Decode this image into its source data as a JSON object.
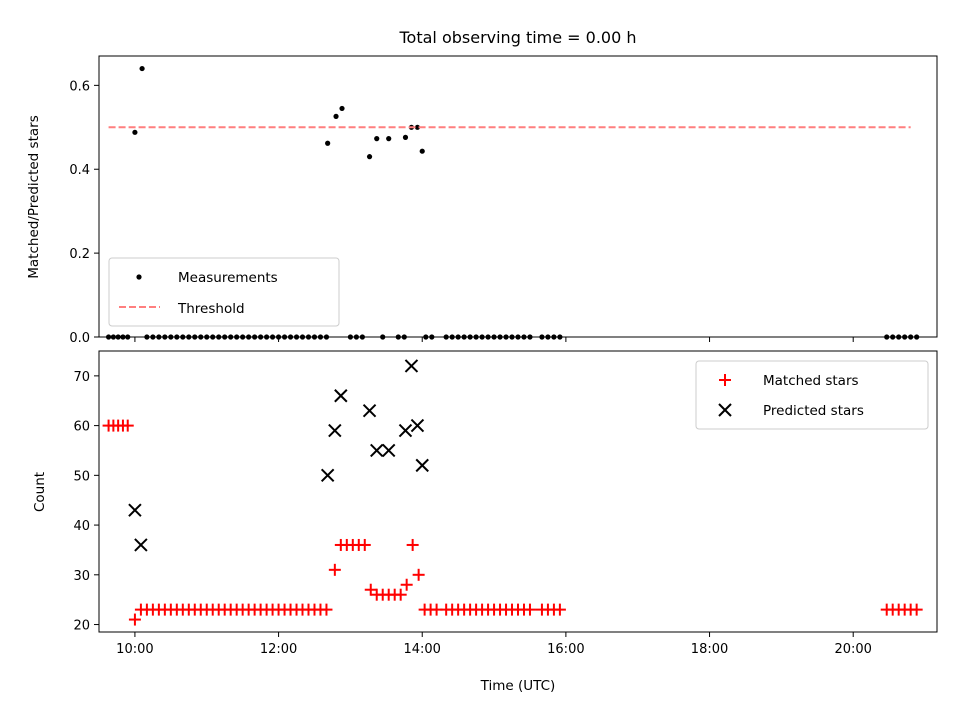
{
  "figure": {
    "title": "Total observing time = 0.00 h",
    "xlabel": "Time (UTC)"
  },
  "chart_data": [
    {
      "type": "scatter",
      "ylabel": "Matched/Predicted stars",
      "xlim": [
        "09:30",
        "21:10"
      ],
      "ylim": [
        0,
        0.67
      ],
      "yticks": [
        "0.0",
        "0.2",
        "0.4",
        "0.6"
      ],
      "xticks": [
        "10:00",
        "12:00",
        "14:00",
        "16:00",
        "18:00",
        "20:00"
      ],
      "legend_position": "lower-left",
      "series": [
        {
          "name": "Measurements",
          "kind": "scatter",
          "color": "#000000",
          "points": [
            [
              "09:38",
              0
            ],
            [
              "09:42",
              0
            ],
            [
              "09:46",
              0
            ],
            [
              "09:50",
              0
            ],
            [
              "09:54",
              0
            ],
            [
              "10:00",
              0.488
            ],
            [
              "10:06",
              0.64
            ],
            [
              "10:10",
              0
            ],
            [
              "10:15",
              0
            ],
            [
              "10:20",
              0
            ],
            [
              "10:25",
              0
            ],
            [
              "10:30",
              0
            ],
            [
              "10:35",
              0
            ],
            [
              "10:40",
              0
            ],
            [
              "10:45",
              0
            ],
            [
              "10:50",
              0
            ],
            [
              "10:55",
              0
            ],
            [
              "11:00",
              0
            ],
            [
              "11:05",
              0
            ],
            [
              "11:10",
              0
            ],
            [
              "11:15",
              0
            ],
            [
              "11:20",
              0
            ],
            [
              "11:25",
              0
            ],
            [
              "11:30",
              0
            ],
            [
              "11:35",
              0
            ],
            [
              "11:40",
              0
            ],
            [
              "11:45",
              0
            ],
            [
              "11:50",
              0
            ],
            [
              "11:55",
              0
            ],
            [
              "12:00",
              0
            ],
            [
              "12:05",
              0
            ],
            [
              "12:10",
              0
            ],
            [
              "12:15",
              0
            ],
            [
              "12:20",
              0
            ],
            [
              "12:25",
              0
            ],
            [
              "12:30",
              0
            ],
            [
              "12:35",
              0
            ],
            [
              "12:40",
              0
            ],
            [
              "12:41",
              0.462
            ],
            [
              "12:48",
              0.526
            ],
            [
              "12:53",
              0.545
            ],
            [
              "13:00",
              0
            ],
            [
              "13:05",
              0
            ],
            [
              "13:10",
              0
            ],
            [
              "13:16",
              0.43
            ],
            [
              "13:22",
              0.473
            ],
            [
              "13:32",
              0.473
            ],
            [
              "13:27",
              0
            ],
            [
              "13:40",
              0
            ],
            [
              "13:45",
              0
            ],
            [
              "13:46",
              0.476
            ],
            [
              "13:51",
              0.5
            ],
            [
              "13:56",
              0.5
            ],
            [
              "14:00",
              0.443
            ],
            [
              "14:03",
              0
            ],
            [
              "14:08",
              0
            ],
            [
              "14:20",
              0
            ],
            [
              "14:25",
              0
            ],
            [
              "14:30",
              0
            ],
            [
              "14:35",
              0
            ],
            [
              "14:40",
              0
            ],
            [
              "14:45",
              0
            ],
            [
              "14:50",
              0
            ],
            [
              "14:55",
              0
            ],
            [
              "15:00",
              0
            ],
            [
              "15:05",
              0
            ],
            [
              "15:10",
              0
            ],
            [
              "15:15",
              0
            ],
            [
              "15:20",
              0
            ],
            [
              "15:25",
              0
            ],
            [
              "15:30",
              0
            ],
            [
              "15:40",
              0
            ],
            [
              "15:45",
              0
            ],
            [
              "15:50",
              0
            ],
            [
              "15:55",
              0
            ],
            [
              "20:28",
              0
            ],
            [
              "20:33",
              0
            ],
            [
              "20:38",
              0
            ],
            [
              "20:43",
              0
            ],
            [
              "20:48",
              0
            ],
            [
              "20:53",
              0
            ]
          ]
        },
        {
          "name": "Threshold",
          "kind": "dashed-line",
          "color": "#ff7f7f",
          "points": [
            [
              "09:38",
              0.5
            ],
            [
              "20:48",
              0.5
            ]
          ]
        }
      ]
    },
    {
      "type": "scatter",
      "ylabel": "Count",
      "xlim": [
        "09:30",
        "21:10"
      ],
      "ylim": [
        18.5,
        75
      ],
      "yticks": [
        "20",
        "30",
        "40",
        "50",
        "60",
        "70"
      ],
      "xticks": [
        "10:00",
        "12:00",
        "14:00",
        "16:00",
        "18:00",
        "20:00"
      ],
      "legend_position": "upper-right",
      "series": [
        {
          "name": "Matched stars",
          "kind": "plus",
          "color": "#ff0000",
          "points": [
            [
              "09:38",
              60
            ],
            [
              "09:42",
              60
            ],
            [
              "09:46",
              60
            ],
            [
              "09:50",
              60
            ],
            [
              "09:54",
              60
            ],
            [
              "10:00",
              21
            ],
            [
              "10:05",
              23
            ],
            [
              "10:10",
              23
            ],
            [
              "10:15",
              23
            ],
            [
              "10:20",
              23
            ],
            [
              "10:25",
              23
            ],
            [
              "10:30",
              23
            ],
            [
              "10:35",
              23
            ],
            [
              "10:40",
              23
            ],
            [
              "10:45",
              23
            ],
            [
              "10:50",
              23
            ],
            [
              "10:55",
              23
            ],
            [
              "11:00",
              23
            ],
            [
              "11:05",
              23
            ],
            [
              "11:10",
              23
            ],
            [
              "11:15",
              23
            ],
            [
              "11:20",
              23
            ],
            [
              "11:25",
              23
            ],
            [
              "11:30",
              23
            ],
            [
              "11:35",
              23
            ],
            [
              "11:40",
              23
            ],
            [
              "11:45",
              23
            ],
            [
              "11:50",
              23
            ],
            [
              "11:55",
              23
            ],
            [
              "12:00",
              23
            ],
            [
              "12:05",
              23
            ],
            [
              "12:10",
              23
            ],
            [
              "12:15",
              23
            ],
            [
              "12:20",
              23
            ],
            [
              "12:25",
              23
            ],
            [
              "12:30",
              23
            ],
            [
              "12:35",
              23
            ],
            [
              "12:40",
              23
            ],
            [
              "12:47",
              31
            ],
            [
              "12:52",
              36
            ],
            [
              "12:57",
              36
            ],
            [
              "13:02",
              36
            ],
            [
              "13:07",
              36
            ],
            [
              "13:12",
              36
            ],
            [
              "13:17",
              27
            ],
            [
              "13:22",
              26
            ],
            [
              "13:27",
              26
            ],
            [
              "13:32",
              26
            ],
            [
              "13:37",
              26
            ],
            [
              "13:42",
              26
            ],
            [
              "13:47",
              28
            ],
            [
              "13:52",
              36
            ],
            [
              "13:57",
              30
            ],
            [
              "14:02",
              23
            ],
            [
              "14:07",
              23
            ],
            [
              "14:12",
              23
            ],
            [
              "14:20",
              23
            ],
            [
              "14:25",
              23
            ],
            [
              "14:30",
              23
            ],
            [
              "14:35",
              23
            ],
            [
              "14:40",
              23
            ],
            [
              "14:45",
              23
            ],
            [
              "14:50",
              23
            ],
            [
              "14:55",
              23
            ],
            [
              "15:00",
              23
            ],
            [
              "15:05",
              23
            ],
            [
              "15:10",
              23
            ],
            [
              "15:15",
              23
            ],
            [
              "15:20",
              23
            ],
            [
              "15:25",
              23
            ],
            [
              "15:30",
              23
            ],
            [
              "15:40",
              23
            ],
            [
              "15:45",
              23
            ],
            [
              "15:50",
              23
            ],
            [
              "15:55",
              23
            ],
            [
              "20:28",
              23
            ],
            [
              "20:33",
              23
            ],
            [
              "20:38",
              23
            ],
            [
              "20:43",
              23
            ],
            [
              "20:48",
              23
            ],
            [
              "20:53",
              23
            ]
          ]
        },
        {
          "name": "Predicted stars",
          "kind": "x",
          "color": "#000000",
          "points": [
            [
              "10:00",
              43
            ],
            [
              "10:05",
              36
            ],
            [
              "12:41",
              50
            ],
            [
              "12:47",
              59
            ],
            [
              "12:52",
              66
            ],
            [
              "13:16",
              63
            ],
            [
              "13:22",
              55
            ],
            [
              "13:32",
              55
            ],
            [
              "13:46",
              59
            ],
            [
              "13:51",
              72
            ],
            [
              "13:56",
              60
            ],
            [
              "14:00",
              52
            ]
          ]
        }
      ]
    }
  ]
}
